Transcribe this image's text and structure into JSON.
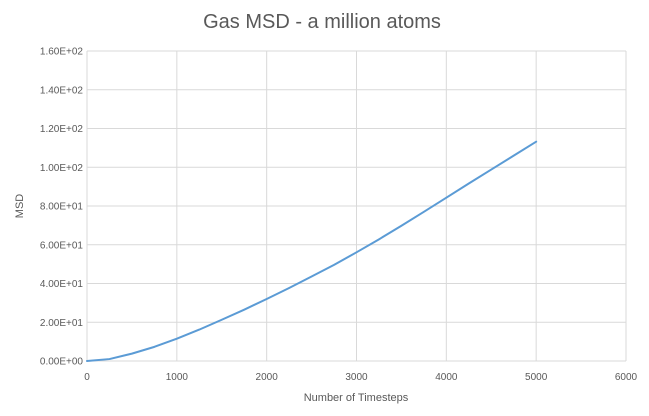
{
  "chart_data": {
    "type": "line",
    "title": "Gas MSD - a million atoms",
    "xlabel": "Number of Timesteps",
    "ylabel": "MSD",
    "xlim": [
      0,
      6000
    ],
    "ylim": [
      0,
      160
    ],
    "x_ticks": [
      0,
      1000,
      2000,
      3000,
      4000,
      5000,
      6000
    ],
    "x_tick_labels": [
      "0",
      "1000",
      "2000",
      "3000",
      "4000",
      "5000",
      "6000"
    ],
    "y_ticks": [
      0,
      20,
      40,
      60,
      80,
      100,
      120,
      140,
      160
    ],
    "y_tick_labels": [
      "0.00E+00",
      "2.00E+01",
      "4.00E+01",
      "6.00E+01",
      "8.00E+01",
      "1.00E+02",
      "1.20E+02",
      "1.40E+02",
      "1.60E+02"
    ],
    "grid": true,
    "legend": "none",
    "series": [
      {
        "color": "#5b9bd5",
        "x": [
          0,
          250,
          500,
          750,
          1000,
          1250,
          1500,
          1750,
          2000,
          2250,
          2500,
          2750,
          3000,
          3250,
          3500,
          3750,
          4000,
          4250,
          4500,
          4750,
          5000
        ],
        "y": [
          0,
          1,
          3.8,
          7.3,
          11.5,
          16.2,
          21.3,
          26.5,
          32.0,
          37.7,
          43.6,
          49.6,
          56.1,
          62.8,
          69.8,
          77.0,
          84.3,
          91.6,
          98.8,
          106.0,
          113.2
        ]
      }
    ]
  }
}
